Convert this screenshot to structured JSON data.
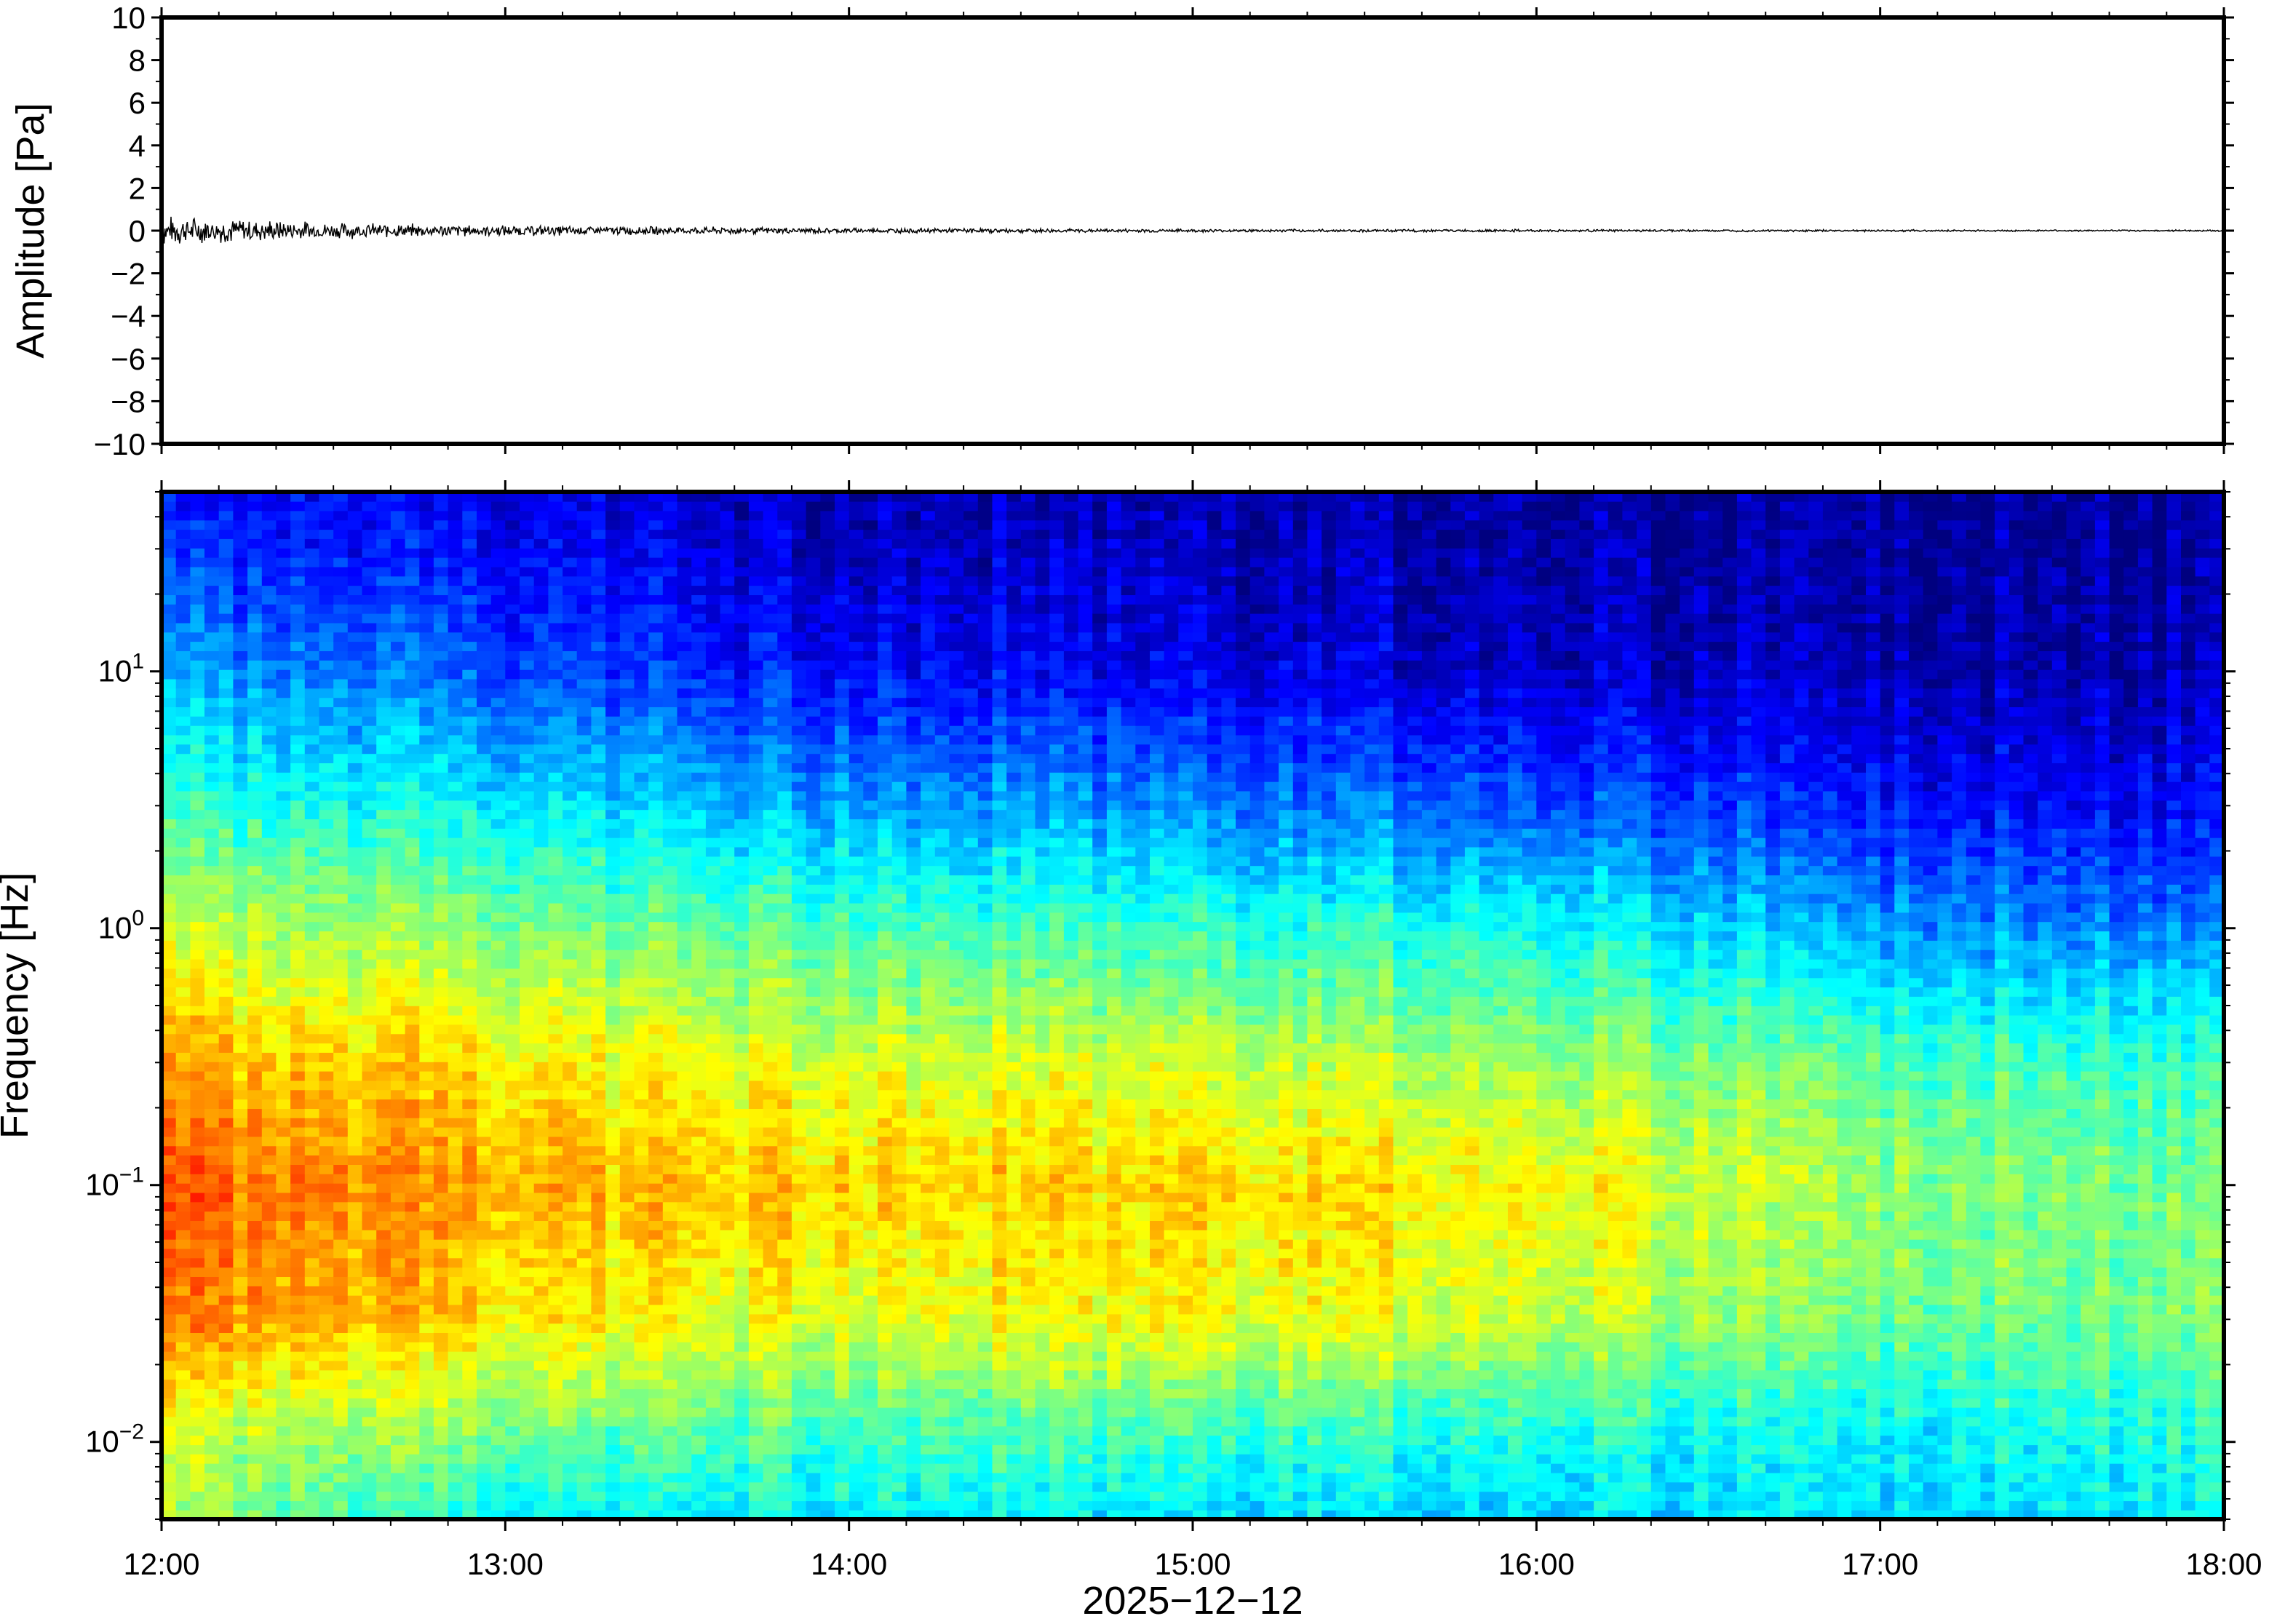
{
  "chart_data": [
    {
      "type": "line",
      "panel": "waveform",
      "ylabel": "Amplitude [Pa]",
      "ylim": [
        -10,
        10
      ],
      "yticks": [
        10,
        8,
        6,
        4,
        2,
        0,
        -2,
        -4,
        -6,
        -8,
        -10
      ],
      "ytick_labels": [
        "10",
        "8",
        "6",
        "4",
        "2",
        "0",
        "−2",
        "−4",
        "−6",
        "−8",
        "−10"
      ],
      "xlim": [
        "12:00",
        "18:00"
      ],
      "series": [
        {
          "color": "#000000",
          "envelope_time": [
            "12:00",
            "12:15",
            "12:30",
            "12:45",
            "13:00",
            "13:30",
            "14:00",
            "14:30",
            "15:00",
            "15:30",
            "16:00",
            "16:30",
            "17:00",
            "17:30",
            "18:00"
          ],
          "envelope_amplitude": [
            0.55,
            0.45,
            0.3,
            0.25,
            0.2,
            0.15,
            0.1,
            0.08,
            0.06,
            0.05,
            0.05,
            0.04,
            0.04,
            0.03,
            0.03
          ]
        }
      ]
    },
    {
      "type": "heatmap",
      "panel": "spectrogram",
      "ylabel": "Frequency [Hz]",
      "yscale": "log",
      "ylim": [
        0.005,
        50
      ],
      "yticks": [
        0.01,
        0.1,
        1,
        10
      ],
      "ytick_labels": [
        {
          "base": "10",
          "exp": "−2"
        },
        {
          "base": "10",
          "exp": "−1"
        },
        {
          "base": "10",
          "exp": "0"
        },
        {
          "base": "10",
          "exp": "1"
        }
      ],
      "xlim": [
        "12:00",
        "18:00"
      ],
      "xticks": [
        "12:00",
        "13:00",
        "14:00",
        "15:00",
        "16:00",
        "17:00",
        "18:00"
      ],
      "xlabel": "2025−12−12",
      "colormap": "jet",
      "colormap_stops": [
        "#00007f",
        "#0000ff",
        "#007fff",
        "#00ffff",
        "#7fff7f",
        "#ffff00",
        "#ff7f00",
        "#ff0000",
        "#7f0000"
      ],
      "power_time": [
        "12:00",
        "13:00",
        "14:00",
        "15:00",
        "16:00",
        "17:00",
        "18:00"
      ],
      "power_frequency": [
        0.005,
        0.01,
        0.03,
        0.1,
        0.3,
        1,
        3,
        10,
        30,
        50
      ],
      "power_relative": [
        [
          0.52,
          0.36,
          0.38,
          0.34,
          0.34,
          0.34,
          0.38
        ],
        [
          0.56,
          0.48,
          0.44,
          0.43,
          0.4,
          0.36,
          0.4
        ],
        [
          0.74,
          0.64,
          0.6,
          0.62,
          0.58,
          0.48,
          0.5
        ],
        [
          0.78,
          0.7,
          0.68,
          0.66,
          0.64,
          0.52,
          0.48
        ],
        [
          0.7,
          0.64,
          0.6,
          0.58,
          0.54,
          0.46,
          0.42
        ],
        [
          0.56,
          0.5,
          0.46,
          0.42,
          0.4,
          0.28,
          0.24
        ],
        [
          0.42,
          0.36,
          0.3,
          0.26,
          0.22,
          0.14,
          0.12
        ],
        [
          0.28,
          0.2,
          0.14,
          0.1,
          0.08,
          0.05,
          0.05
        ],
        [
          0.16,
          0.12,
          0.08,
          0.06,
          0.05,
          0.03,
          0.03
        ],
        [
          0.12,
          0.1,
          0.07,
          0.05,
          0.04,
          0.03,
          0.03
        ]
      ]
    }
  ]
}
